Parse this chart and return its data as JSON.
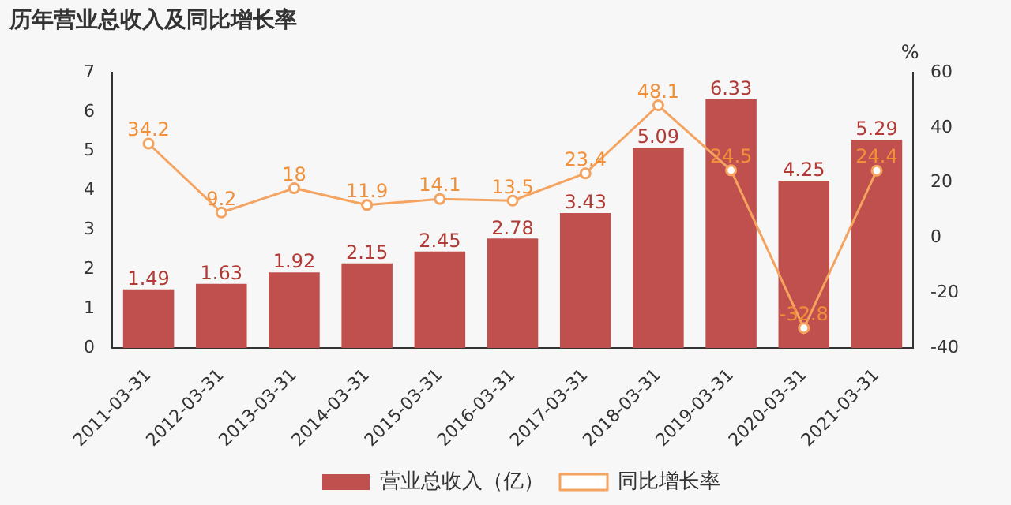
{
  "chart_data": {
    "type": "bar",
    "title": "历年营业总收入及同比增长率",
    "y2label": "%",
    "categories": [
      "2011-03-31",
      "2012-03-31",
      "2013-03-31",
      "2014-03-31",
      "2015-03-31",
      "2016-03-31",
      "2017-03-31",
      "2018-03-31",
      "2019-03-31",
      "2020-03-31",
      "2021-03-31"
    ],
    "series": [
      {
        "name": "营业总收入（亿）",
        "color": "#c0504d",
        "values": [
          1.49,
          1.63,
          1.92,
          2.15,
          2.45,
          2.78,
          3.43,
          5.09,
          6.33,
          4.25,
          5.29
        ]
      },
      {
        "name": "同比增长率",
        "type": "line",
        "axis": "y2",
        "color": "#f4a460",
        "marker": "circle",
        "values": [
          34.2,
          9.2,
          18,
          11.9,
          14.1,
          13.5,
          23.4,
          48.1,
          24.5,
          -32.8,
          24.4
        ]
      }
    ],
    "ylim": [
      0,
      7
    ],
    "yticks": [
      0,
      1,
      2,
      3,
      4,
      5,
      6,
      7
    ],
    "y2lim": [
      -40,
      60
    ],
    "y2ticks": [
      -40,
      -20,
      0,
      20,
      40,
      60
    ],
    "data_labels": true,
    "grid": false,
    "legend": "bottom"
  }
}
